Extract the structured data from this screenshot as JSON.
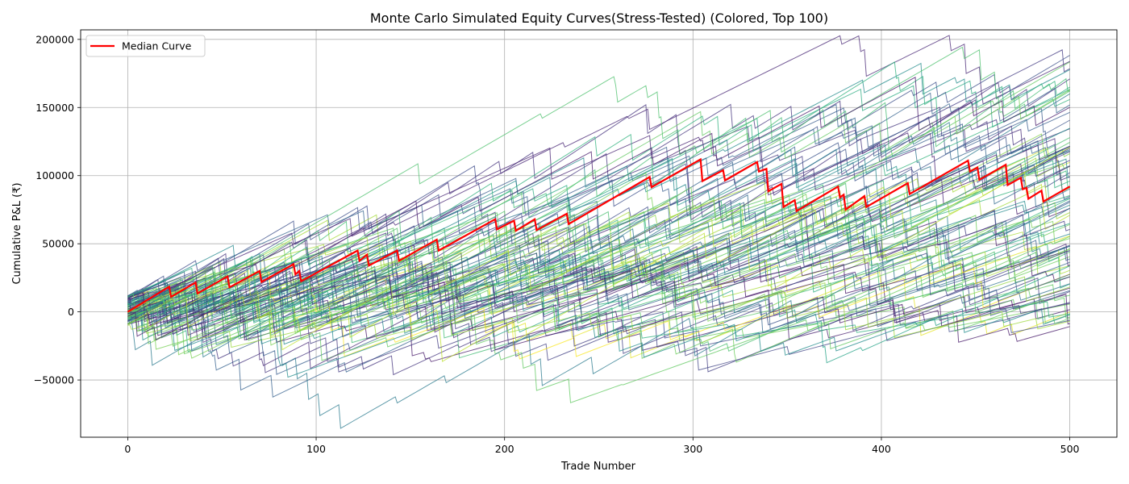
{
  "chart_data": {
    "type": "line",
    "title": "Monte Carlo Simulated Equity Curves(Stress-Tested) (Colored, Top 100)",
    "xlabel": "Trade Number",
    "ylabel": "Cumulative P&L (₹)",
    "xlim": [
      -25,
      525
    ],
    "ylim": [
      -92000,
      207000
    ],
    "xticks": [
      0,
      100,
      200,
      300,
      400,
      500
    ],
    "yticks": [
      -50000,
      0,
      50000,
      100000,
      150000,
      200000
    ],
    "grid": true,
    "legend": {
      "position": "top-left",
      "entries": [
        "Median Curve"
      ]
    },
    "median_series": {
      "name": "Median Curve",
      "color": "#ff0000",
      "x": [
        0,
        22,
        23,
        36,
        37,
        53,
        54,
        70,
        71,
        88,
        89,
        91,
        92,
        122,
        123,
        127,
        128,
        143,
        144,
        164,
        165,
        195,
        196,
        205,
        206,
        216,
        217,
        233,
        234,
        277,
        278,
        304,
        305,
        316,
        317,
        334,
        335,
        339,
        340,
        347,
        348,
        354,
        355,
        377,
        378,
        380,
        381,
        391,
        392,
        414,
        415,
        446,
        447,
        451,
        452,
        466,
        467,
        474,
        475,
        477,
        478,
        485,
        486,
        500
      ],
      "y": [
        0,
        18500,
        11000,
        21500,
        13500,
        26000,
        18000,
        30000,
        22000,
        35000,
        27500,
        30000,
        22500,
        45000,
        37500,
        42000,
        34000,
        45000,
        37500,
        53000,
        45000,
        68000,
        60500,
        67000,
        59500,
        68000,
        60000,
        72000,
        64500,
        99000,
        91500,
        112000,
        96000,
        104000,
        96500,
        110000,
        103000,
        105000,
        88500,
        94000,
        77000,
        82000,
        74000,
        92000,
        84000,
        86000,
        75000,
        85000,
        77000,
        94500,
        86500,
        111000,
        103000,
        106000,
        97000,
        108000,
        93000,
        98500,
        90000,
        91000,
        83000,
        89000,
        81000,
        92000
      ]
    },
    "simulations": {
      "count": 100,
      "trades": 500,
      "colormap": "viridis",
      "start_min": -10000,
      "start_max": 12000,
      "end_min": -4000,
      "end_max": 188000,
      "global_min": -79000,
      "global_max": 193000
    }
  }
}
